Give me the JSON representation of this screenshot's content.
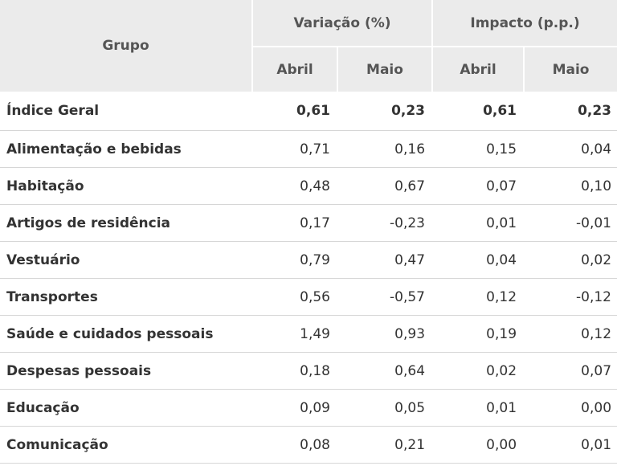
{
  "header": {
    "group": "Grupo",
    "variation": "Variação (%)",
    "impact": "Impacto (p.p.)",
    "april": "Abril",
    "may": "Maio"
  },
  "rows": [
    {
      "group": "Índice Geral",
      "var_apr": "0,61",
      "var_may": "0,23",
      "imp_apr": "0,61",
      "imp_may": "0,23"
    },
    {
      "group": "Alimentação e bebidas",
      "var_apr": "0,71",
      "var_may": "0,16",
      "imp_apr": "0,15",
      "imp_may": "0,04"
    },
    {
      "group": "Habitação",
      "var_apr": "0,48",
      "var_may": "0,67",
      "imp_apr": "0,07",
      "imp_may": "0,10"
    },
    {
      "group": "Artigos de residência",
      "var_apr": "0,17",
      "var_may": "-0,23",
      "imp_apr": "0,01",
      "imp_may": "-0,01"
    },
    {
      "group": "Vestuário",
      "var_apr": "0,79",
      "var_may": "0,47",
      "imp_apr": "0,04",
      "imp_may": "0,02"
    },
    {
      "group": "Transportes",
      "var_apr": "0,56",
      "var_may": "-0,57",
      "imp_apr": "0,12",
      "imp_may": "-0,12"
    },
    {
      "group": "Saúde e cuidados pessoais",
      "var_apr": "1,49",
      "var_may": "0,93",
      "imp_apr": "0,19",
      "imp_may": "0,12"
    },
    {
      "group": "Despesas pessoais",
      "var_apr": "0,18",
      "var_may": "0,64",
      "imp_apr": "0,02",
      "imp_may": "0,07"
    },
    {
      "group": "Educação",
      "var_apr": "0,09",
      "var_may": "0,05",
      "imp_apr": "0,01",
      "imp_may": "0,00"
    },
    {
      "group": "Comunicação",
      "var_apr": "0,08",
      "var_may": "0,21",
      "imp_apr": "0,00",
      "imp_may": "0,01"
    }
  ]
}
